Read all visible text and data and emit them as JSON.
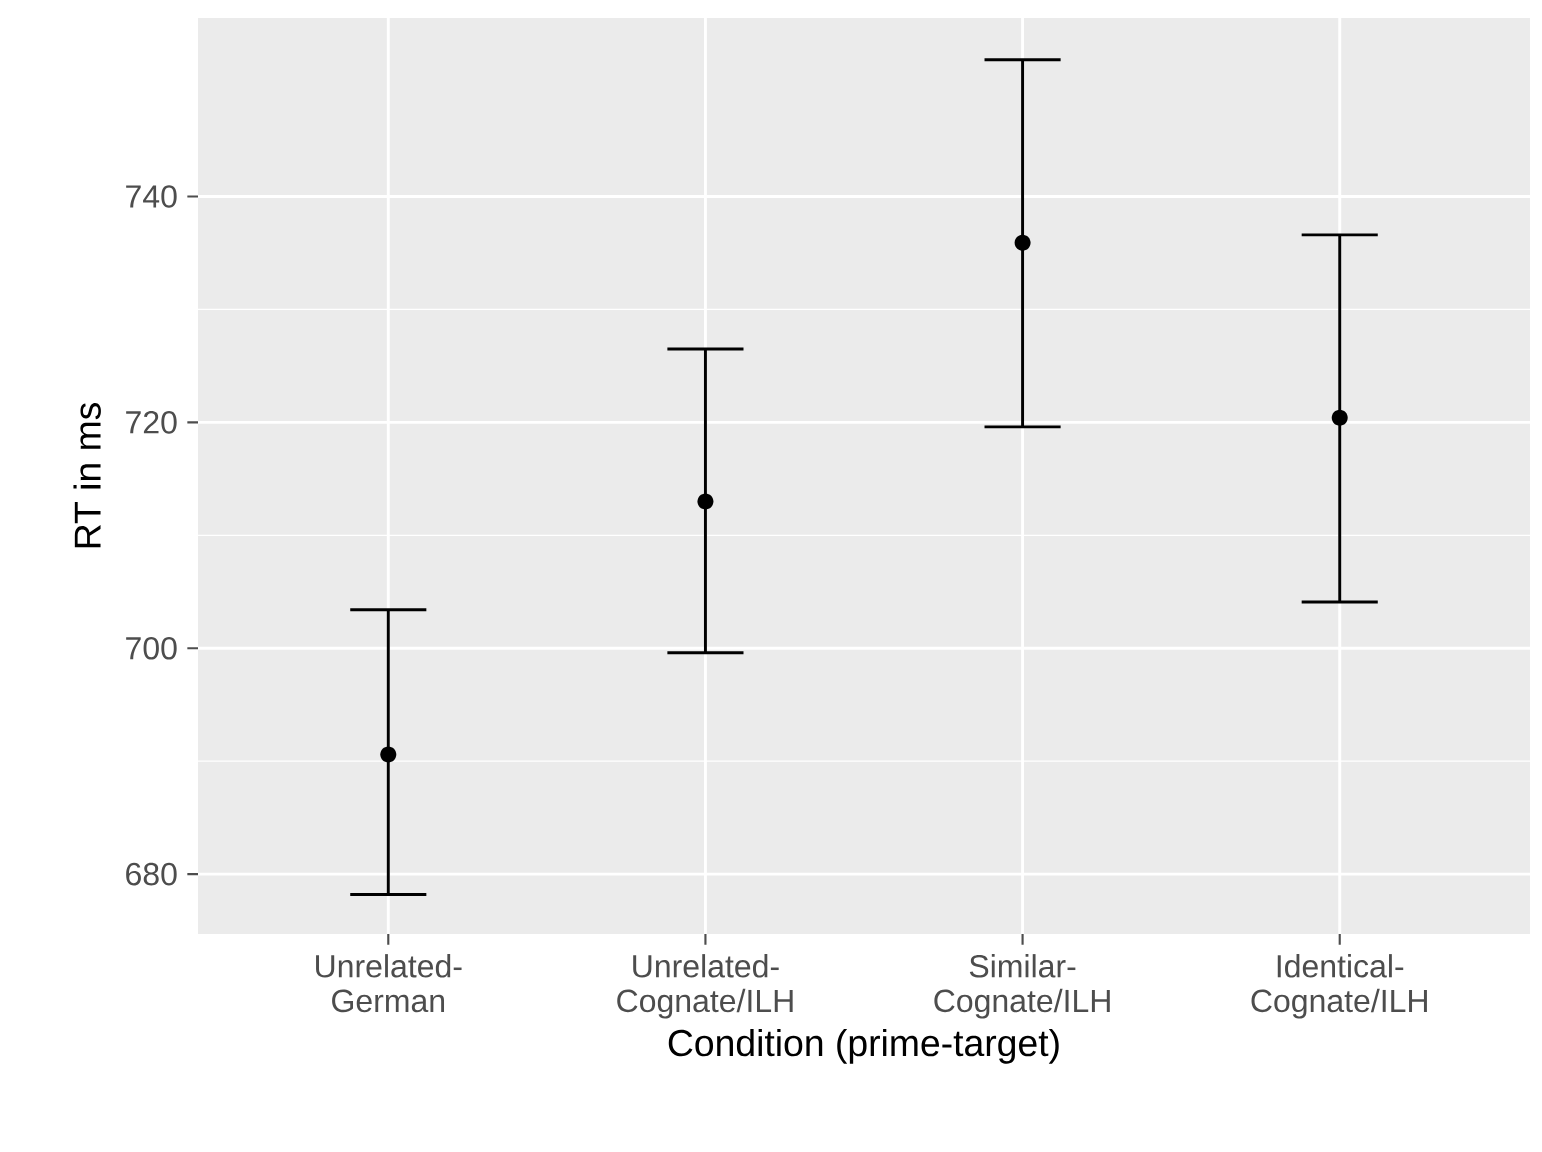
{
  "chart_data": {
    "type": "scatter",
    "xlabel": "Condition (prime-target)",
    "ylabel": "RT in ms",
    "categories": [
      "Unrelated-German",
      "Unrelated-Cognate/ILH",
      "Similar-Cognate/ILH",
      "Identical-Cognate/ILH"
    ],
    "values": [
      690.6,
      713.0,
      735.9,
      720.4
    ],
    "errors": [
      [
        678.2,
        703.4
      ],
      [
        699.6,
        726.5
      ],
      [
        719.6,
        752.1
      ],
      [
        704.1,
        736.6
      ]
    ],
    "color": "#000000",
    "marker": "circle",
    "ylim": [
      674.7,
      755.8
    ],
    "yticks": [
      680,
      700,
      720,
      740
    ],
    "grid": true
  }
}
